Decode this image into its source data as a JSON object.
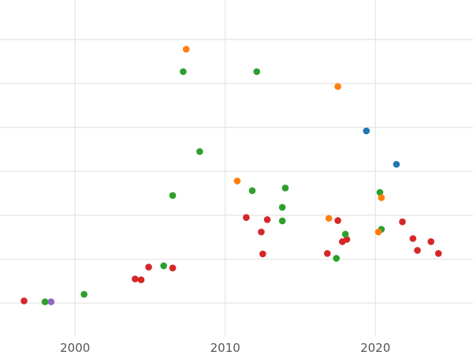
{
  "chart_data": {
    "type": "scatter",
    "title": "",
    "xlabel": "",
    "ylabel": "",
    "xlim": [
      1995.0,
      2026.5
    ],
    "ylim": [
      -0.75,
      6.9
    ],
    "x_ticks": [
      2000,
      2010,
      2020
    ],
    "x_tick_labels": [
      "2000",
      "2010",
      "2020"
    ],
    "y_gridlines": [
      0,
      1,
      2,
      3,
      4,
      5,
      6
    ],
    "grid": true,
    "legend": "none",
    "series": [
      {
        "color": "#d62728",
        "points": [
          {
            "x": 1996.6,
            "y": 0.05
          },
          {
            "x": 2004.0,
            "y": 0.55
          },
          {
            "x": 2004.4,
            "y": 0.53
          },
          {
            "x": 2004.9,
            "y": 0.82
          },
          {
            "x": 2006.5,
            "y": 0.8
          },
          {
            "x": 2011.4,
            "y": 1.95
          },
          {
            "x": 2012.4,
            "y": 1.62
          },
          {
            "x": 2012.5,
            "y": 1.12
          },
          {
            "x": 2012.8,
            "y": 1.9
          },
          {
            "x": 2016.8,
            "y": 1.13
          },
          {
            "x": 2017.5,
            "y": 1.88
          },
          {
            "x": 2017.8,
            "y": 1.4
          },
          {
            "x": 2018.1,
            "y": 1.45
          },
          {
            "x": 2021.8,
            "y": 1.85
          },
          {
            "x": 2022.5,
            "y": 1.47
          },
          {
            "x": 2022.8,
            "y": 1.2
          },
          {
            "x": 2023.7,
            "y": 1.4
          },
          {
            "x": 2024.2,
            "y": 1.13
          }
        ]
      },
      {
        "color": "#2ca02c",
        "points": [
          {
            "x": 1998.0,
            "y": 0.03
          },
          {
            "x": 2000.6,
            "y": 0.2
          },
          {
            "x": 2005.9,
            "y": 0.85
          },
          {
            "x": 2006.5,
            "y": 2.45
          },
          {
            "x": 2007.2,
            "y": 5.27
          },
          {
            "x": 2008.3,
            "y": 3.45
          },
          {
            "x": 2011.8,
            "y": 2.56
          },
          {
            "x": 2012.1,
            "y": 5.27
          },
          {
            "x": 2013.8,
            "y": 2.18
          },
          {
            "x": 2013.8,
            "y": 1.87
          },
          {
            "x": 2014.0,
            "y": 2.62
          },
          {
            "x": 2017.4,
            "y": 1.02
          },
          {
            "x": 2018.0,
            "y": 1.57
          },
          {
            "x": 2020.3,
            "y": 2.52
          },
          {
            "x": 2020.4,
            "y": 1.68
          }
        ]
      },
      {
        "color": "#ff7f0e",
        "points": [
          {
            "x": 2007.4,
            "y": 5.78
          },
          {
            "x": 2010.8,
            "y": 2.78
          },
          {
            "x": 2016.9,
            "y": 1.93
          },
          {
            "x": 2017.5,
            "y": 4.93
          },
          {
            "x": 2020.2,
            "y": 1.62
          },
          {
            "x": 2020.4,
            "y": 2.4
          }
        ]
      },
      {
        "color": "#1f77b4",
        "points": [
          {
            "x": 2019.4,
            "y": 3.92
          },
          {
            "x": 2021.4,
            "y": 3.16
          }
        ]
      },
      {
        "color": "#9467bd",
        "points": [
          {
            "x": 1998.4,
            "y": 0.03
          }
        ]
      }
    ]
  }
}
